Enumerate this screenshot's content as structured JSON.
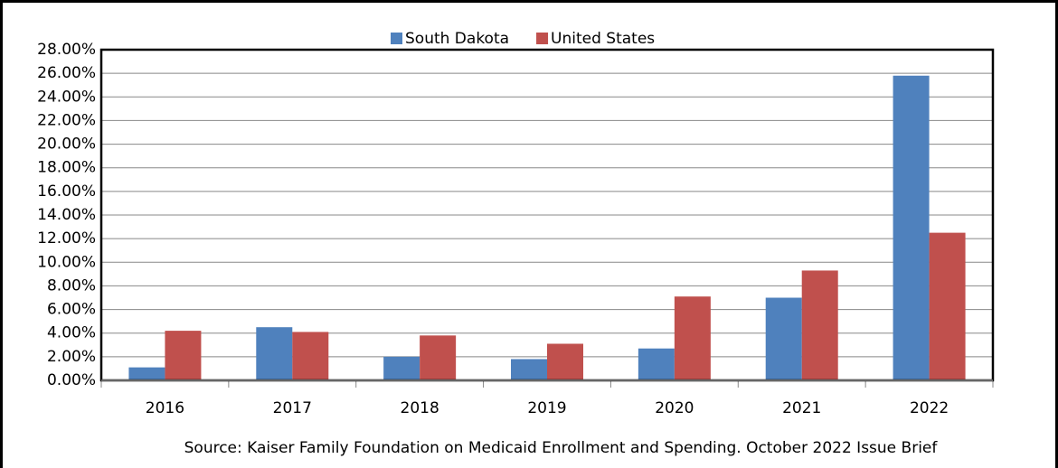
{
  "chart_data": {
    "type": "bar",
    "caption": "Source: Kaiser Family Foundation on Medicaid Enrollment and Spending. October 2022 Issue Brief",
    "categories": [
      "2016",
      "2017",
      "2018",
      "2019",
      "2020",
      "2021",
      "2022"
    ],
    "series": [
      {
        "name": "South Dakota",
        "color": "#4f81bd",
        "values": [
          1.1,
          4.5,
          2.0,
          1.8,
          2.7,
          7.0,
          25.8
        ]
      },
      {
        "name": "United States",
        "color": "#c0504d",
        "values": [
          4.2,
          4.1,
          3.8,
          3.1,
          7.1,
          9.3,
          12.5
        ]
      }
    ],
    "ylim": [
      0,
      28
    ],
    "yticks": [
      {
        "value": 0,
        "label": "0.00%"
      },
      {
        "value": 2,
        "label": "2.00%"
      },
      {
        "value": 4,
        "label": "4.00%"
      },
      {
        "value": 6,
        "label": "6.00%"
      },
      {
        "value": 8,
        "label": "8.00%"
      },
      {
        "value": 10,
        "label": "10.00%"
      },
      {
        "value": 12,
        "label": "12.00%"
      },
      {
        "value": 14,
        "label": "14.00%"
      },
      {
        "value": 16,
        "label": "16.00%"
      },
      {
        "value": 18,
        "label": "18.00%"
      },
      {
        "value": 20,
        "label": "20.00%"
      },
      {
        "value": 22,
        "label": "22.00%"
      },
      {
        "value": 24,
        "label": "24.00%"
      },
      {
        "value": 26,
        "label": "26.00%"
      },
      {
        "value": 28,
        "label": "28.00%"
      }
    ],
    "grid": true,
    "legend": "top"
  }
}
